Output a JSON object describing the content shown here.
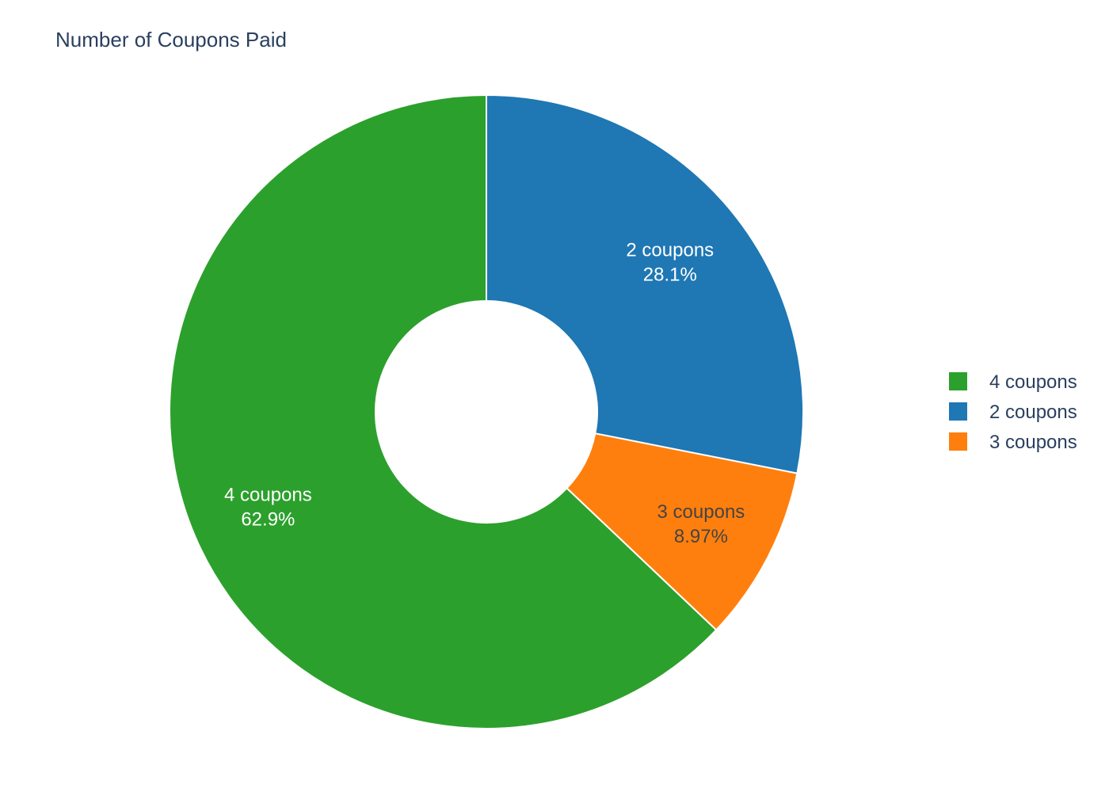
{
  "chart_data": {
    "type": "pie",
    "hole": true,
    "title": "Number of Coupons Paid",
    "slices": [
      {
        "label": "4 coupons",
        "value": 62.9,
        "percent_text": "62.9%",
        "color": "#2ca02c",
        "text_color": "#ffffff"
      },
      {
        "label": "3 coupons",
        "value": 8.97,
        "percent_text": "8.97%",
        "color": "#ff7f0e",
        "text_color": "#444444"
      },
      {
        "label": "2 coupons",
        "value": 28.1,
        "percent_text": "28.1%",
        "color": "#1f77b4",
        "text_color": "#ffffff"
      }
    ],
    "legend": {
      "position": "right",
      "entries": [
        {
          "label": "4 coupons",
          "color": "#2ca02c"
        },
        {
          "label": "2 coupons",
          "color": "#1f77b4"
        },
        {
          "label": "3 coupons",
          "color": "#ff7f0e"
        }
      ]
    }
  }
}
